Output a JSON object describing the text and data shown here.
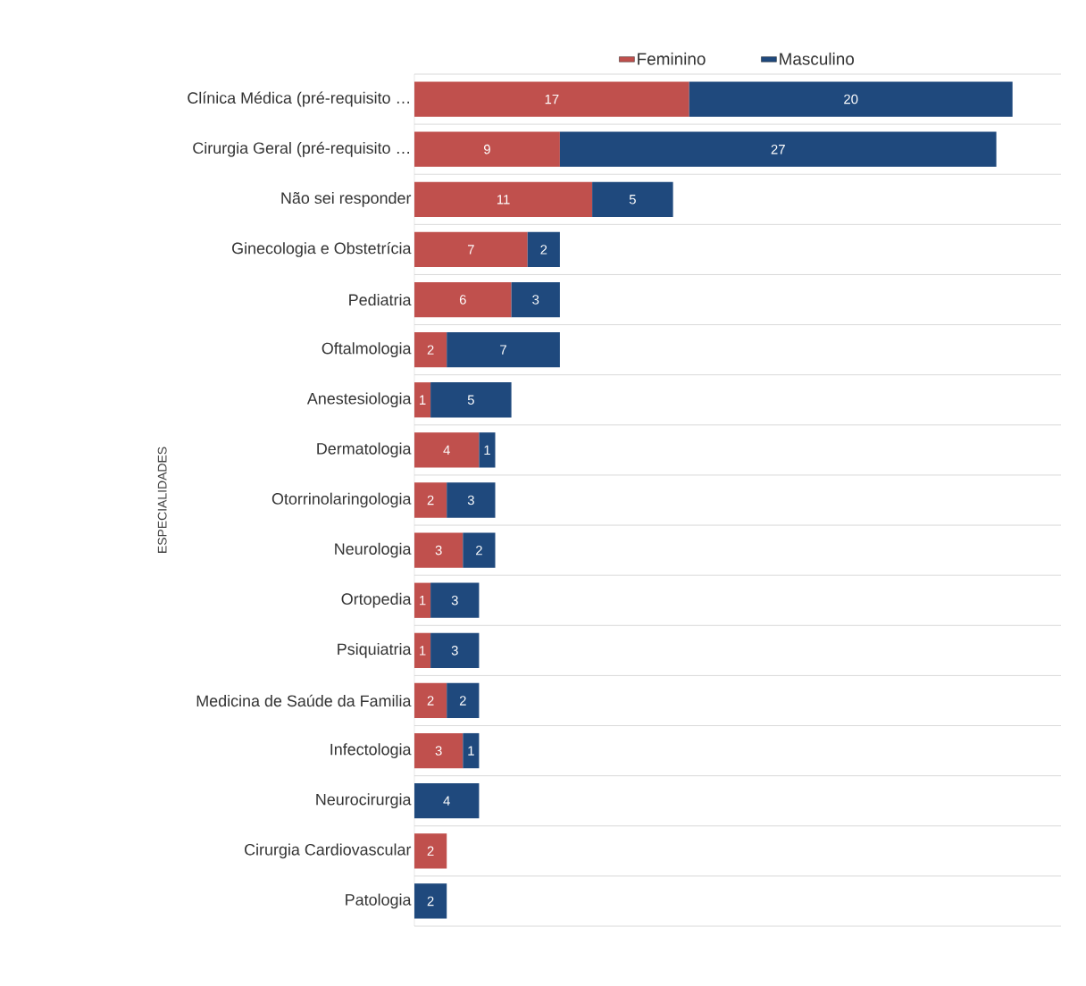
{
  "chart_data": {
    "type": "bar",
    "orientation": "horizontal",
    "stacked": true,
    "ylabel": "ESPECIALIDADES",
    "categories": [
      "Clínica Médica (pré-requisito …",
      "Cirurgia Geral (pré-requisito …",
      "Não sei responder",
      "Ginecologia e Obstetrícia",
      "Pediatria",
      "Oftalmologia",
      "Anestesiologia",
      "Dermatologia",
      "Otorrinolaringologia",
      "Neurologia",
      "Ortopedia",
      "Psiquiatria",
      "Medicina de Saúde da Familia",
      "Infectologia",
      "Neurocirurgia",
      "Cirurgia Cardiovascular",
      "Patologia"
    ],
    "series": [
      {
        "name": "Feminino",
        "color": "#c0504d",
        "values": [
          17,
          9,
          11,
          7,
          6,
          2,
          1,
          4,
          2,
          3,
          1,
          1,
          2,
          3,
          null,
          2,
          null
        ]
      },
      {
        "name": "Masculino",
        "color": "#1f497d",
        "values": [
          20,
          27,
          5,
          2,
          3,
          7,
          5,
          1,
          3,
          2,
          3,
          3,
          2,
          1,
          4,
          null,
          2
        ]
      }
    ],
    "data_labels": true,
    "legend": "top",
    "grid": "y"
  }
}
